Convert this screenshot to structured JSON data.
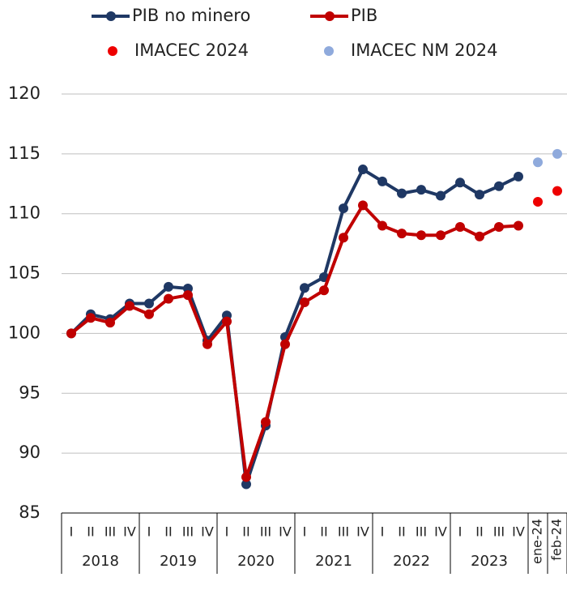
{
  "chart_data": {
    "type": "line",
    "categories": [
      "I",
      "II",
      "III",
      "IV",
      "I",
      "II",
      "III",
      "IV",
      "I",
      "II",
      "III",
      "IV",
      "I",
      "II",
      "III",
      "IV",
      "I",
      "II",
      "III",
      "IV",
      "I",
      "II",
      "III",
      "IV",
      "ene-24",
      "feb-24"
    ],
    "year_groups": [
      "2018",
      "2019",
      "2020",
      "2021",
      "2022",
      "2023"
    ],
    "ylim": [
      85,
      120
    ],
    "yticks": [
      85,
      90,
      95,
      100,
      105,
      110,
      115,
      120
    ],
    "grid": true,
    "legend": "top",
    "series": [
      {
        "name": "PIB no minero",
        "color": "#1f3864",
        "style": "line",
        "values": [
          100.0,
          101.6,
          101.2,
          102.5,
          102.5,
          103.9,
          103.75,
          99.4,
          101.5,
          87.4,
          92.3,
          99.7,
          103.8,
          104.7,
          110.45,
          113.7,
          112.7,
          111.7,
          112.0,
          111.5,
          112.6,
          111.6,
          112.3,
          113.1,
          null,
          null
        ]
      },
      {
        "name": "PIB",
        "color": "#c00000",
        "style": "line",
        "values": [
          100.0,
          101.3,
          100.9,
          102.3,
          101.6,
          102.9,
          103.2,
          99.1,
          101.0,
          88.0,
          92.6,
          99.1,
          102.6,
          103.6,
          108.0,
          110.7,
          109.0,
          108.35,
          108.2,
          108.2,
          108.9,
          108.1,
          108.9,
          109.0,
          null,
          null
        ]
      },
      {
        "name": "IMACEC 2024",
        "color": "#ee0000",
        "style": "dot",
        "values": [
          null,
          null,
          null,
          null,
          null,
          null,
          null,
          null,
          null,
          null,
          null,
          null,
          null,
          null,
          null,
          null,
          null,
          null,
          null,
          null,
          null,
          null,
          null,
          null,
          111.0,
          111.9
        ]
      },
      {
        "name": "IMACEC NM 2024",
        "color": "#8faadc",
        "style": "dot",
        "values": [
          null,
          null,
          null,
          null,
          null,
          null,
          null,
          null,
          null,
          null,
          null,
          null,
          null,
          null,
          null,
          null,
          null,
          null,
          null,
          null,
          null,
          null,
          null,
          null,
          114.3,
          115.0
        ]
      }
    ]
  }
}
